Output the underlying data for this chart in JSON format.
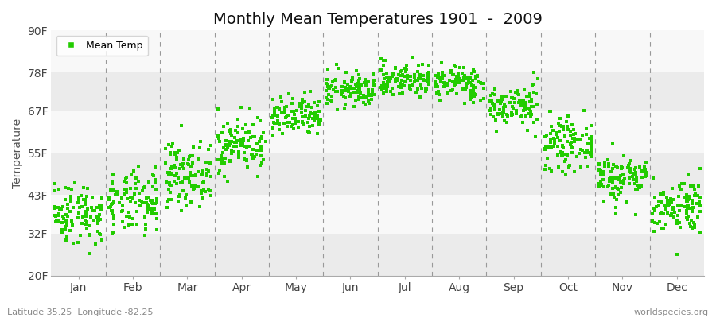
{
  "title": "Monthly Mean Temperatures 1901  -  2009",
  "ylabel": "Temperature",
  "dot_color": "#22CC00",
  "background_color": "#FFFFFF",
  "plot_bg_color": "#FFFFFF",
  "band_colors": [
    "#EBEBEB",
    "#F8F8F8"
  ],
  "yticks": [
    20,
    32,
    43,
    55,
    67,
    78,
    90
  ],
  "ytick_labels": [
    "20F",
    "32F",
    "43F",
    "55F",
    "67F",
    "78F",
    "90F"
  ],
  "ylim": [
    20,
    90
  ],
  "months": [
    "Jan",
    "Feb",
    "Mar",
    "Apr",
    "May",
    "Jun",
    "Jul",
    "Aug",
    "Sep",
    "Oct",
    "Nov",
    "Dec"
  ],
  "mean_temps_f": [
    38.0,
    40.5,
    49.0,
    57.5,
    65.0,
    73.0,
    76.0,
    75.0,
    68.5,
    57.5,
    48.0,
    40.0
  ],
  "std_temps_f": [
    4.5,
    4.5,
    4.5,
    4.0,
    3.0,
    2.5,
    2.5,
    2.5,
    3.0,
    3.5,
    3.5,
    4.0
  ],
  "n_years": 109,
  "legend_label": "Mean Temp",
  "footer_left": "Latitude 35.25  Longitude -82.25",
  "footer_right": "worldspecies.org",
  "marker_size": 5,
  "dot_alpha": 1.0
}
